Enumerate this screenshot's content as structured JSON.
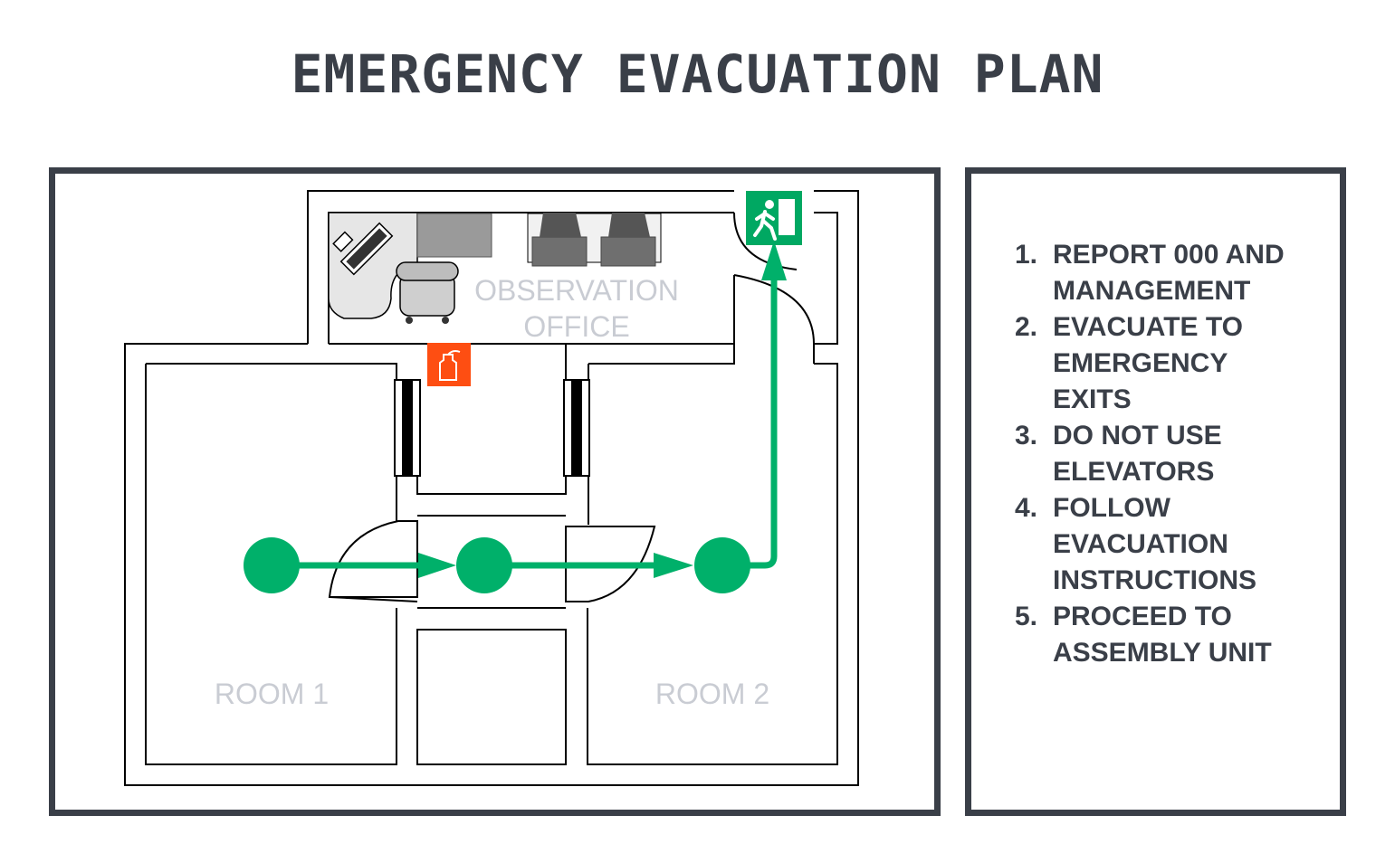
{
  "title": "EMERGENCY EVACUATION PLAN",
  "rooms": {
    "office_line1": "OBSERVATION",
    "office_line2": "OFFICE",
    "room1": "ROOM 1",
    "room2": "ROOM 2"
  },
  "icons": {
    "exit": "emergency-exit-icon",
    "extinguisher": "fire-extinguisher-icon"
  },
  "steps": [
    {
      "num": "1.",
      "text": "REPORT 000 AND MANAGEMENT"
    },
    {
      "num": "2.",
      "text": "EVACUATE TO EMERGENCY EXITS"
    },
    {
      "num": "3.",
      "text": "DO NOT USE ELEVATORS"
    },
    {
      "num": "4.",
      "text": "FOLLOW EVACUATION INSTRUCTIONS"
    },
    {
      "num": "5.",
      "text": "PROCEED TO ASSEMBLY UNIT"
    }
  ],
  "colors": {
    "frame": "#3a3f48",
    "route": "#00b06a",
    "exit_sign": "#00a862",
    "extinguisher": "#fe4e12",
    "room_label": "#c9ccd3"
  }
}
